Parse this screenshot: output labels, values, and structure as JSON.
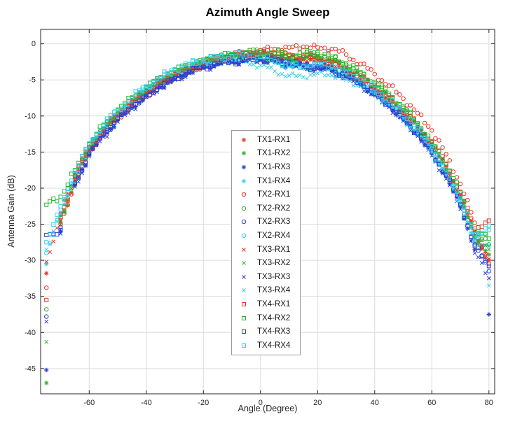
{
  "chart_data": {
    "type": "scatter",
    "title": "Azimuth Angle Sweep",
    "xlabel": "Angle (Degree)",
    "ylabel": "Antenna Gain (dB)",
    "xlim": [
      -77,
      82
    ],
    "ylim": [
      -48.5,
      2
    ],
    "x_ticks": [
      -60,
      -40,
      -20,
      0,
      20,
      40,
      60,
      80
    ],
    "y_ticks": [
      0,
      -5,
      -10,
      -15,
      -20,
      -25,
      -30,
      -35,
      -40,
      -45
    ],
    "grid": true,
    "legend_position": "center",
    "axis_color": "#262626",
    "grid_color": "#dcdcdc",
    "angles": [
      -75,
      -70,
      -65,
      -60,
      -55,
      -50,
      -45,
      -40,
      -35,
      -30,
      -25,
      -20,
      -15,
      -10,
      -5,
      0,
      5,
      10,
      15,
      20,
      25,
      30,
      35,
      40,
      45,
      50,
      55,
      60,
      65,
      70,
      75,
      80
    ],
    "series": [
      {
        "name": "TX1-RX1",
        "marker": "asterisk",
        "color": "#e93425",
        "values": [
          -31.8,
          -23.5,
          -18.0,
          -14.2,
          -11.8,
          -9.6,
          -8.0,
          -6.4,
          -5.6,
          -4.5,
          -3.6,
          -2.9,
          -2.3,
          -1.9,
          -1.7,
          -1.5,
          -1.8,
          -2.0,
          -2.2,
          -2.4,
          -3.1,
          -4.0,
          -5.2,
          -6.3,
          -7.9,
          -9.7,
          -11.6,
          -13.9,
          -17.2,
          -21.1,
          -26.5,
          -30.0
        ]
      },
      {
        "name": "TX1-RX2",
        "marker": "asterisk",
        "color": "#2ab22a",
        "values": [
          -47.0,
          -24.8,
          -19.0,
          -14.9,
          -12.2,
          -10.0,
          -8.4,
          -6.9,
          -5.4,
          -4.3,
          -3.5,
          -2.8,
          -2.5,
          -2.1,
          -1.7,
          -1.6,
          -1.9,
          -2.3,
          -2.1,
          -1.9,
          -2.5,
          -3.4,
          -4.6,
          -6.0,
          -7.6,
          -9.3,
          -11.9,
          -14.3,
          -17.6,
          -21.5,
          -27.0,
          -29.2
        ]
      },
      {
        "name": "TX1-RX3",
        "marker": "asterisk",
        "color": "#2a3ed2",
        "values": [
          -45.2,
          -26.0,
          -19.6,
          -15.4,
          -12.7,
          -10.6,
          -8.8,
          -7.2,
          -6.0,
          -4.9,
          -4.0,
          -3.3,
          -2.8,
          -2.5,
          -2.3,
          -2.2,
          -2.4,
          -2.7,
          -3.0,
          -3.2,
          -3.7,
          -4.5,
          -5.6,
          -7.0,
          -8.6,
          -10.5,
          -12.6,
          -15.2,
          -18.4,
          -22.6,
          -28.5,
          -37.5
        ]
      },
      {
        "name": "TX1-RX4",
        "marker": "asterisk",
        "color": "#32d0e8",
        "values": [
          -30.5,
          -23.8,
          -18.6,
          -14.6,
          -12.0,
          -9.9,
          -8.2,
          -6.6,
          -5.2,
          -4.1,
          -3.3,
          -2.6,
          -2.2,
          -1.9,
          -1.8,
          -2.0,
          -2.6,
          -3.1,
          -3.4,
          -3.0,
          -3.5,
          -4.3,
          -5.5,
          -6.8,
          -8.4,
          -10.2,
          -12.4,
          -15.0,
          -18.0,
          -22.0,
          -27.5,
          -28.0
        ]
      },
      {
        "name": "TX2-RX1",
        "marker": "circle",
        "color": "#e93425",
        "values": [
          -33.8,
          -25.0,
          -19.3,
          -15.0,
          -12.4,
          -10.2,
          -8.5,
          -7.0,
          -5.8,
          -4.7,
          -3.8,
          -3.0,
          -2.3,
          -1.7,
          -1.2,
          -0.9,
          -0.7,
          -0.5,
          -0.4,
          -0.5,
          -0.7,
          -1.5,
          -2.8,
          -4.2,
          -5.8,
          -7.6,
          -9.6,
          -12.0,
          -15.3,
          -19.4,
          -24.8,
          -30.5
        ]
      },
      {
        "name": "TX2-RX2",
        "marker": "circle",
        "color": "#2ab22a",
        "values": [
          -36.8,
          -24.2,
          -18.3,
          -14.4,
          -11.7,
          -9.5,
          -7.8,
          -6.2,
          -5.0,
          -3.9,
          -3.1,
          -2.4,
          -1.9,
          -1.5,
          -1.3,
          -1.2,
          -1.4,
          -1.7,
          -1.6,
          -1.4,
          -2.0,
          -2.9,
          -4.1,
          -5.5,
          -7.1,
          -8.9,
          -11.2,
          -13.7,
          -16.9,
          -20.8,
          -26.2,
          -27.8
        ]
      },
      {
        "name": "TX2-RX3",
        "marker": "circle",
        "color": "#2a3ed2",
        "values": [
          -37.8,
          -25.4,
          -19.2,
          -15.1,
          -12.5,
          -10.3,
          -8.6,
          -7.1,
          -5.7,
          -4.6,
          -3.7,
          -3.0,
          -2.5,
          -2.2,
          -2.0,
          -1.9,
          -2.1,
          -2.5,
          -2.9,
          -3.1,
          -3.4,
          -4.2,
          -5.3,
          -6.7,
          -8.3,
          -10.1,
          -12.3,
          -14.8,
          -18.1,
          -22.2,
          -27.8,
          -31.5
        ]
      },
      {
        "name": "TX2-RX4",
        "marker": "circle",
        "color": "#32d0e8",
        "values": [
          -29.0,
          -23.0,
          -17.9,
          -14.0,
          -11.4,
          -9.3,
          -7.6,
          -6.1,
          -4.8,
          -3.7,
          -2.9,
          -2.3,
          -1.8,
          -1.5,
          -1.3,
          -1.4,
          -2.0,
          -2.7,
          -3.2,
          -2.8,
          -3.2,
          -4.0,
          -5.1,
          -6.4,
          -8.0,
          -9.8,
          -12.0,
          -14.5,
          -17.7,
          -21.7,
          -26.8,
          -25.8
        ]
      },
      {
        "name": "TX3-RX1",
        "marker": "x",
        "color": "#e93425",
        "values": [
          -30.2,
          -24.6,
          -18.8,
          -14.7,
          -12.1,
          -9.9,
          -8.3,
          -6.7,
          -5.5,
          -4.4,
          -3.5,
          -2.8,
          -2.2,
          -1.8,
          -1.6,
          -1.4,
          -1.6,
          -1.9,
          -2.1,
          -2.3,
          -2.9,
          -3.8,
          -5.0,
          -6.2,
          -7.8,
          -9.5,
          -11.5,
          -13.8,
          -17.0,
          -20.9,
          -26.0,
          -29.8
        ]
      },
      {
        "name": "TX3-RX2",
        "marker": "x",
        "color": "#2ab22a",
        "values": [
          -41.3,
          -24.4,
          -18.5,
          -14.5,
          -11.9,
          -9.7,
          -8.1,
          -6.5,
          -5.3,
          -4.2,
          -3.4,
          -2.7,
          -2.1,
          -1.7,
          -1.5,
          -1.7,
          -2.0,
          -2.2,
          -1.9,
          -1.7,
          -2.3,
          -3.2,
          -4.4,
          -5.8,
          -7.4,
          -9.1,
          -11.4,
          -14.0,
          -17.3,
          -21.2,
          -26.6,
          -28.5
        ]
      },
      {
        "name": "TX3-RX3",
        "marker": "x",
        "color": "#2a3ed2",
        "values": [
          -38.5,
          -26.3,
          -19.8,
          -15.6,
          -12.9,
          -10.8,
          -9.0,
          -7.4,
          -6.1,
          -5.0,
          -4.1,
          -3.4,
          -2.9,
          -2.6,
          -2.4,
          -2.3,
          -2.5,
          -2.9,
          -3.3,
          -3.5,
          -3.9,
          -4.7,
          -5.8,
          -7.2,
          -8.8,
          -10.7,
          -12.8,
          -15.5,
          -18.7,
          -22.9,
          -29.0,
          -32.5
        ]
      },
      {
        "name": "TX3-RX4",
        "marker": "x",
        "color": "#32d0e8",
        "values": [
          -28.5,
          -23.4,
          -18.2,
          -14.3,
          -11.6,
          -9.6,
          -7.9,
          -6.3,
          -5.0,
          -4.0,
          -3.2,
          -2.7,
          -2.4,
          -2.3,
          -2.5,
          -3.0,
          -3.8,
          -4.4,
          -4.6,
          -4.1,
          -4.4,
          -5.0,
          -5.9,
          -7.0,
          -8.6,
          -10.4,
          -12.6,
          -15.1,
          -18.3,
          -22.4,
          -27.2,
          -33.5
        ]
      },
      {
        "name": "TX4-RX1",
        "marker": "square",
        "color": "#e93425",
        "values": [
          -35.5,
          -24.0,
          -18.4,
          -14.4,
          -11.8,
          -9.7,
          -8.1,
          -6.6,
          -5.3,
          -4.2,
          -3.3,
          -2.6,
          -2.0,
          -1.6,
          -1.3,
          -1.1,
          -1.3,
          -1.5,
          -1.7,
          -1.9,
          -2.5,
          -3.4,
          -4.6,
          -6.0,
          -7.5,
          -9.2,
          -11.3,
          -13.6,
          -16.7,
          -20.6,
          -25.6,
          -24.5
        ]
      },
      {
        "name": "TX4-RX2",
        "marker": "square",
        "color": "#2ab22a",
        "values": [
          -22.3,
          -21.2,
          -17.5,
          -13.9,
          -11.3,
          -9.2,
          -7.5,
          -6.0,
          -4.7,
          -3.6,
          -2.8,
          -2.2,
          -1.7,
          -1.4,
          -1.2,
          -1.1,
          -1.3,
          -1.6,
          -1.4,
          -1.2,
          -1.8,
          -2.7,
          -3.9,
          -5.3,
          -6.9,
          -8.7,
          -11.0,
          -13.5,
          -16.6,
          -20.5,
          -25.9,
          -27.0
        ]
      },
      {
        "name": "TX4-RX3",
        "marker": "square",
        "color": "#2a3ed2",
        "values": [
          -26.5,
          -25.8,
          -19.4,
          -15.3,
          -12.6,
          -10.4,
          -8.7,
          -7.3,
          -5.9,
          -4.8,
          -3.9,
          -3.2,
          -2.7,
          -2.4,
          -2.2,
          -2.1,
          -2.3,
          -2.6,
          -3.1,
          -3.3,
          -3.6,
          -4.4,
          -5.5,
          -6.9,
          -8.5,
          -10.3,
          -12.5,
          -15.0,
          -18.2,
          -22.3,
          -28.0,
          -30.8
        ]
      },
      {
        "name": "TX4-RX4",
        "marker": "square",
        "color": "#32d0e8",
        "values": [
          -27.5,
          -22.5,
          -17.6,
          -13.8,
          -11.2,
          -9.1,
          -7.4,
          -5.9,
          -4.6,
          -3.5,
          -2.8,
          -2.2,
          -1.9,
          -1.7,
          -1.6,
          -1.8,
          -2.4,
          -2.9,
          -3.1,
          -2.7,
          -3.1,
          -3.9,
          -4.9,
          -6.2,
          -7.7,
          -9.4,
          -11.7,
          -14.2,
          -17.4,
          -21.4,
          -26.4,
          -25.2
        ]
      }
    ]
  }
}
